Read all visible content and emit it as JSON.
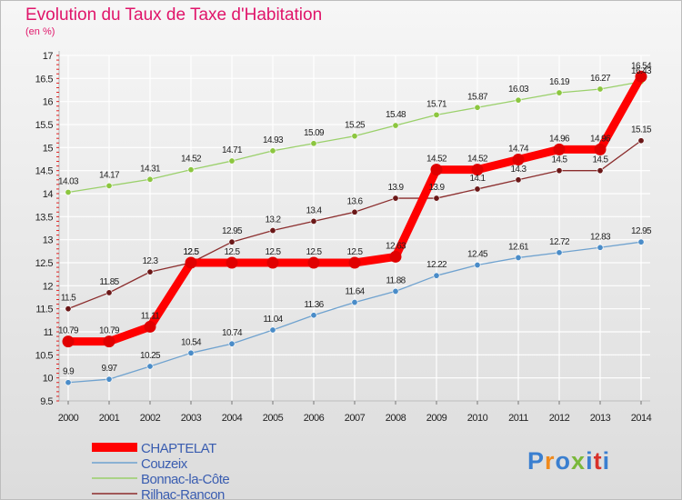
{
  "header": {
    "title": "Evolution du Taux de Taxe d'Habitation",
    "unit": "(en %)"
  },
  "logo": {
    "text": "Proxiti",
    "colors": [
      "#3a7fd0",
      "#f08a1c",
      "#3a7fd0",
      "#7ab83a",
      "#3a7fd0",
      "#d8322b",
      "#3a7fd0"
    ]
  },
  "chart_data": {
    "type": "line",
    "x": [
      2000,
      2001,
      2002,
      2003,
      2004,
      2005,
      2006,
      2007,
      2008,
      2009,
      2010,
      2011,
      2012,
      2013,
      2014
    ],
    "xtick_labels": [
      "2000",
      "2001",
      "2002",
      "2003",
      "2004",
      "2005",
      "2006",
      "2007",
      "2008",
      "2009",
      "2010",
      "2011",
      "2012",
      "2013",
      "2014"
    ],
    "ylim": [
      9.5,
      17
    ],
    "yticks": [
      9.5,
      10,
      10.5,
      11,
      11.5,
      12,
      12.5,
      13,
      13.5,
      14,
      14.5,
      15,
      15.5,
      16,
      16.5,
      17
    ],
    "ytick_labels": [
      "9.5",
      "10",
      "10.5",
      "11",
      "11.5",
      "12",
      "12.5",
      "13",
      "13.5",
      "14",
      "14.5",
      "15",
      "15.5",
      "16",
      "16.5",
      "17"
    ],
    "grid": true,
    "legend": "bottom-left",
    "series": [
      {
        "name": "Bonnac-la-Côte",
        "color": "#9ad06a",
        "marker": "#8cc63f",
        "values": [
          14.03,
          14.17,
          14.31,
          14.52,
          14.71,
          14.93,
          15.09,
          15.25,
          15.48,
          15.71,
          15.87,
          16.03,
          16.19,
          16.27,
          16.43
        ],
        "labels": [
          "14.03",
          "14.17",
          "14.31",
          "14.52",
          "14.71",
          "14.93",
          "15.09",
          "15.25",
          "15.48",
          "15.71",
          "15.87",
          "16.03",
          "16.19",
          "16.27",
          "16.43"
        ]
      },
      {
        "name": "Rilhac-Rancon",
        "color": "#8b2d2d",
        "marker": "#6b1818",
        "values": [
          11.5,
          11.85,
          12.3,
          12.5,
          12.95,
          13.2,
          13.4,
          13.6,
          13.9,
          13.9,
          14.1,
          14.3,
          14.5,
          14.5,
          15.15
        ],
        "labels": [
          "11.5",
          "11.85",
          "12.3",
          "12.5",
          "12.95",
          "13.2",
          "13.4",
          "13.6",
          "13.9",
          "13.9",
          "14.1",
          "14.3",
          "14.5",
          "14.5",
          "15.15"
        ]
      },
      {
        "name": "Couzeix",
        "color": "#6fa2cf",
        "marker": "#4a8cc8",
        "values": [
          9.9,
          9.97,
          10.25,
          10.54,
          10.74,
          11.04,
          11.36,
          11.64,
          11.88,
          12.22,
          12.45,
          12.61,
          12.72,
          12.83,
          12.95
        ],
        "labels": [
          "9.9",
          "9.97",
          "10.25",
          "10.54",
          "10.74",
          "11.04",
          "11.36",
          "11.64",
          "11.88",
          "12.22",
          "12.45",
          "12.61",
          "12.72",
          "12.83",
          "12.95"
        ]
      },
      {
        "name": "CHAPTELAT",
        "color": "#ff0000",
        "marker": "#e00000",
        "values": [
          10.79,
          10.79,
          11.11,
          12.5,
          12.5,
          12.5,
          12.5,
          12.5,
          12.63,
          14.52,
          14.52,
          14.74,
          14.96,
          14.96,
          16.54
        ],
        "labels": [
          "10.79",
          "10.79",
          "11.11",
          "12.5",
          "12.5",
          "12.5",
          "12.5",
          "12.5",
          "12.63",
          "14.52",
          "14.52",
          "14.74",
          "14.96",
          "14.96",
          "16.54"
        ]
      }
    ],
    "legend_order": [
      "CHAPTELAT",
      "Couzeix",
      "Bonnac-la-Côte",
      "Rilhac-Rancon"
    ]
  }
}
